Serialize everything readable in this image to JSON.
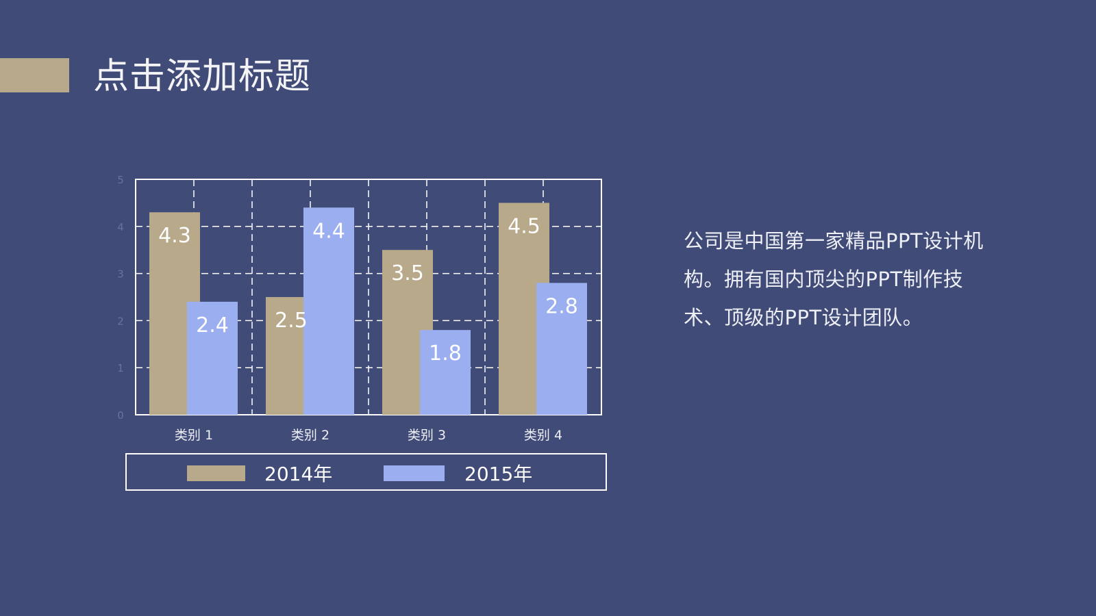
{
  "slide": {
    "title": "点击添加标题",
    "description": "公司是中国第一家精品PPT设计机构。拥有国内顶尖的PPT制作技术、顶级的PPT设计团队。"
  },
  "colors": {
    "background": "#404b78",
    "accent": "#b8a98a",
    "series_2014": "#b8a98a",
    "series_2015": "#9baef0",
    "grid": "#ffffff",
    "text": "#f4f4f6"
  },
  "chart_data": {
    "type": "bar",
    "categories": [
      "类别 1",
      "类别 2",
      "类别 3",
      "类别 4"
    ],
    "series": [
      {
        "name": "2014年",
        "values": [
          4.3,
          2.5,
          3.5,
          4.5
        ]
      },
      {
        "name": "2015年",
        "values": [
          2.4,
          4.4,
          1.8,
          2.8
        ]
      }
    ],
    "ylim": [
      0,
      5
    ],
    "yticks": [
      0,
      1,
      2,
      3,
      4,
      5
    ],
    "grid": true,
    "legend": "bottom",
    "data_labels": true
  }
}
